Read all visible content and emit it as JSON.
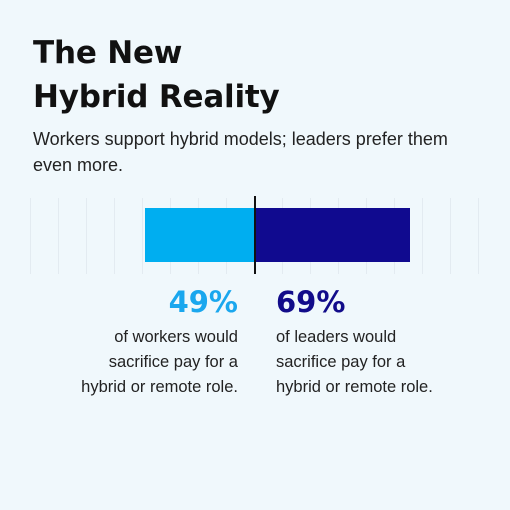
{
  "title_lines": [
    "The New",
    "Hybrid Reality"
  ],
  "subtitle": "Workers support hybrid models; leaders prefer them even more.",
  "colors": {
    "background": "#f0f8fc",
    "workers_bar": "#00aef0",
    "leaders_bar": "#100a8f",
    "workers_text": "#1aa7ee",
    "leaders_text": "#120c8a"
  },
  "chart_data": {
    "type": "bar",
    "title": "The New Hybrid Reality",
    "subtitle": "Workers support hybrid models; leaders prefer them even more.",
    "categories": [
      "Workers",
      "Leaders"
    ],
    "values": [
      49,
      69
    ],
    "unit": "%",
    "series": [
      {
        "name": "",
        "value": 49,
        "color": "#00aef0"
      },
      {
        "name": "",
        "value": 69,
        "color": "#100a8f"
      }
    ],
    "grid": true
  },
  "stats": [
    {
      "value": "49%",
      "description": "of workers would\nsacrifice pay for a\nhybrid or  remote role."
    },
    {
      "value": "69%",
      "description": "of leaders would\nsacrifice pay for a\nhybrid or remote role."
    }
  ]
}
